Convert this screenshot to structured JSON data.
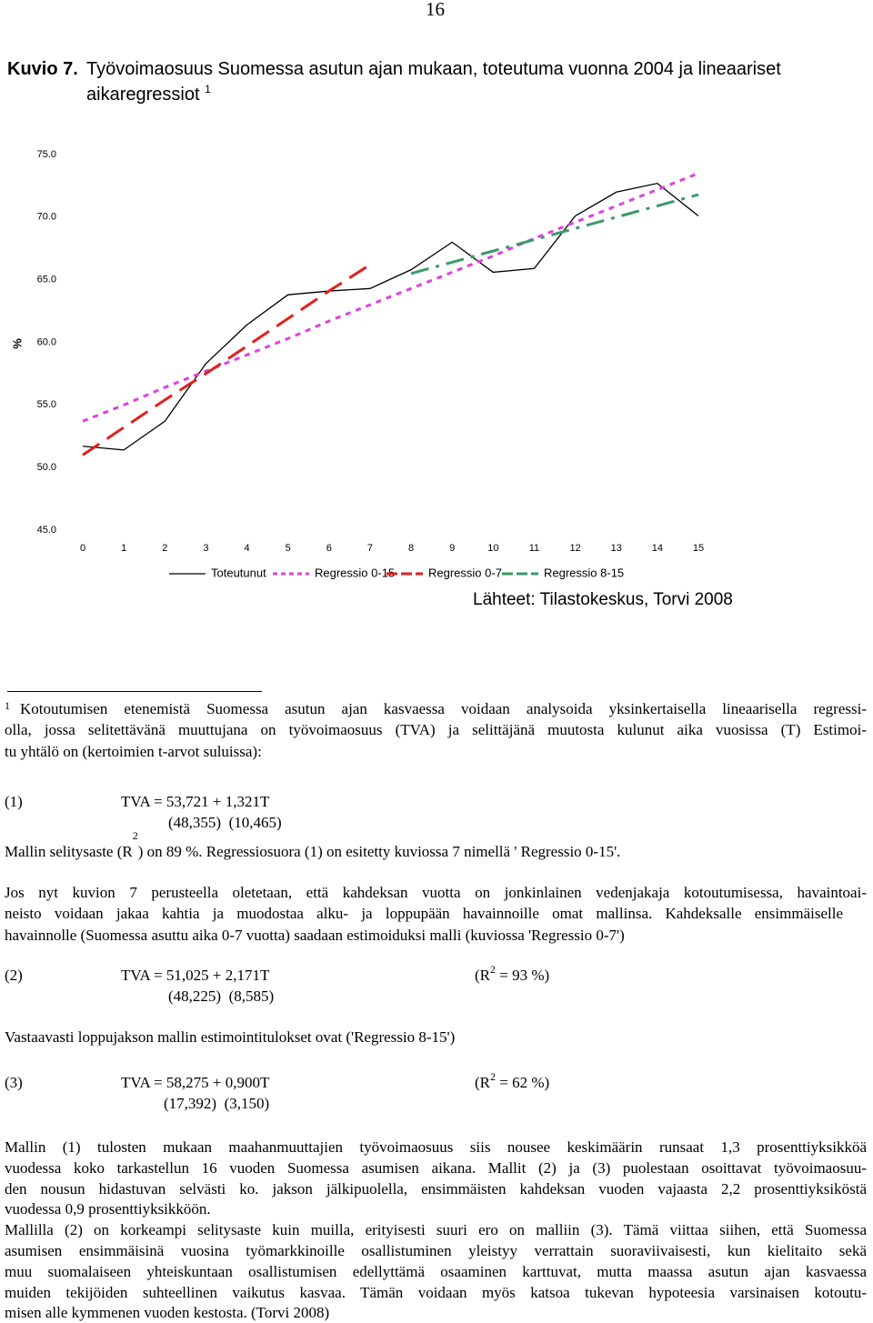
{
  "page_number": "16",
  "figure": {
    "label": "Kuvio 7.",
    "caption_lines": [
      "Työvoimaosuus Suomessa asutun ajan mukaan, toteutuma vuonna 2004 ja lineaariset",
      "aikaregressiot"
    ],
    "caption_note": "1",
    "source": "Lähteet: Tilastokeskus, Torvi 2008"
  },
  "chart_data": {
    "type": "line",
    "ylabel": "%",
    "x": [
      0,
      1,
      2,
      3,
      4,
      5,
      6,
      7,
      8,
      9,
      10,
      11,
      12,
      13,
      14,
      15
    ],
    "xlim": [
      0,
      15
    ],
    "xticks": [
      0,
      1,
      2,
      3,
      4,
      5,
      6,
      7,
      8,
      9,
      10,
      11,
      12,
      13,
      14,
      15
    ],
    "ylim": [
      45,
      75
    ],
    "yticks": [
      {
        "value": 45,
        "label": "45.0"
      },
      {
        "value": 50,
        "label": "50.0"
      },
      {
        "value": 55,
        "label": "55.0"
      },
      {
        "value": 60,
        "label": "60.0"
      },
      {
        "value": 65,
        "label": "65.0"
      },
      {
        "value": 70,
        "label": "70.0"
      },
      {
        "value": 75,
        "label": "75.0"
      }
    ],
    "legend": "bottom",
    "series": [
      {
        "name": "Toteutunut",
        "color": "#000000",
        "style": "solid",
        "values": [
          51.7,
          51.4,
          53.7,
          58.3,
          61.4,
          63.8,
          64.1,
          64.3,
          65.8,
          68.0,
          65.6,
          65.9,
          70.1,
          72.0,
          72.7,
          70.1
        ]
      },
      {
        "name": "Regressio 0-15",
        "color": "#e040e0",
        "style": "dotted",
        "values": [
          53.7,
          55.0,
          56.4,
          57.7,
          59.0,
          60.3,
          61.7,
          63.0,
          64.3,
          65.6,
          66.9,
          68.3,
          69.6,
          70.9,
          72.2,
          73.5
        ]
      },
      {
        "name": "Regressio 0-7",
        "color": "#e02020",
        "style": "dashed",
        "values": [
          51.0,
          53.2,
          55.4,
          57.5,
          59.7,
          61.9,
          64.1,
          66.2,
          null,
          null,
          null,
          null,
          null,
          null,
          null,
          null
        ]
      },
      {
        "name": "Regressio 8-15",
        "color": "#3a9a6a",
        "style": "dashdot",
        "values": [
          null,
          null,
          null,
          null,
          null,
          null,
          null,
          null,
          65.5,
          66.4,
          67.3,
          68.2,
          69.1,
          70.0,
          70.9,
          71.8
        ]
      }
    ]
  },
  "footnote": {
    "marker": "1",
    "lines": [
      "Kotoutumisen etenemistä Suomessa asutun ajan kasvaessa voidaan analysoida yksinkertaisella lineaarisella regressi-",
      "olla, jossa selitettävänä muuttujana on työvoimaosuus (TVA) ja selittäjänä muutosta kulunut aika vuosissa (T) Estimoi-",
      "tu yhtälö on (kertoimien t-arvot suluissa):"
    ]
  },
  "equation_1": {
    "number": "(1)",
    "formula": "TVA = 53,721 + 1,321T",
    "t_values": "(48,355)  (10,465)"
  },
  "fit_note": {
    "before": "Mallin selitysaste (R",
    "sup": "2",
    "after": ") on 89 %. Regressiosuora (1) on esitetty kuviossa 7 nimellä ' Regressio 0-15'."
  },
  "paragraph_1": [
    "Jos nyt kuvion 7 perusteella oletetaan, että kahdeksan vuotta on jonkinlainen vedenjakaja kotoutumisessa, havaintoai-",
    "neisto voidaan jakaa kahtia ja muodostaa alku- ja loppupään havainnoille omat mallinsa. Kahdeksalle ensimmäiselle",
    "havainnolle (Suomessa asuttu aika 0-7 vuotta) saadaan estimoiduksi malli (kuviossa 'Regressio 0-7')"
  ],
  "equation_2": {
    "number": "(2)",
    "formula": "TVA = 51,025 + 2,171T",
    "t_values": "(48,225)  (8,585)",
    "r2_before": "(R",
    "r2_sup": "2",
    "r2_after": " = 93 %)"
  },
  "paragraph_2": [
    "Vastaavasti loppujakson mallin estimointitulokset ovat ('Regressio 8-15')"
  ],
  "equation_3": {
    "number": "(3)",
    "formula": "TVA = 58,275 + 0,900T",
    "t_values": "(17,392)  (3,150)",
    "r2_before": "(R",
    "r2_sup": "2",
    "r2_after": " = 62 %)"
  },
  "paragraph_3": [
    "Mallin (1) tulosten mukaan maahanmuuttajien työvoimaosuus siis nousee keskimäärin runsaat 1,3 prosenttiyksikköä",
    "vuodessa koko tarkastellun 16 vuoden Suomessa asumisen aikana. Mallit (2) ja (3) puolestaan osoittavat työvoimaosuu-",
    "den nousun hidastuvan selvästi ko. jakson jälkipuolella, ensimmäisten kahdeksan vuoden vajaasta 2,2 prosenttiyksiköstä",
    "vuodessa 0,9 prosenttiyksikköön.",
    "Mallilla (2) on korkeampi selitysaste kuin muilla, erityisesti suuri ero on malliin (3). Tämä viittaa siihen, että Suomessa",
    "asumisen ensimmäisinä vuosina työmarkkinoille osallistuminen yleistyy verrattain suoraviivaisesti, kun kielitaito sekä",
    "muu suomalaiseen yhteiskuntaan osallistumisen edellyttämä osaaminen karttuvat, mutta maassa asutun ajan kasvaessa",
    "muiden tekijöiden suhteellinen vaikutus kasvaa. Tämän voidaan myös katsoa tukevan hypoteesia varsinaisen kotoutu-",
    "misen alle kymmenen vuoden kestosta. (Torvi 2008)"
  ]
}
